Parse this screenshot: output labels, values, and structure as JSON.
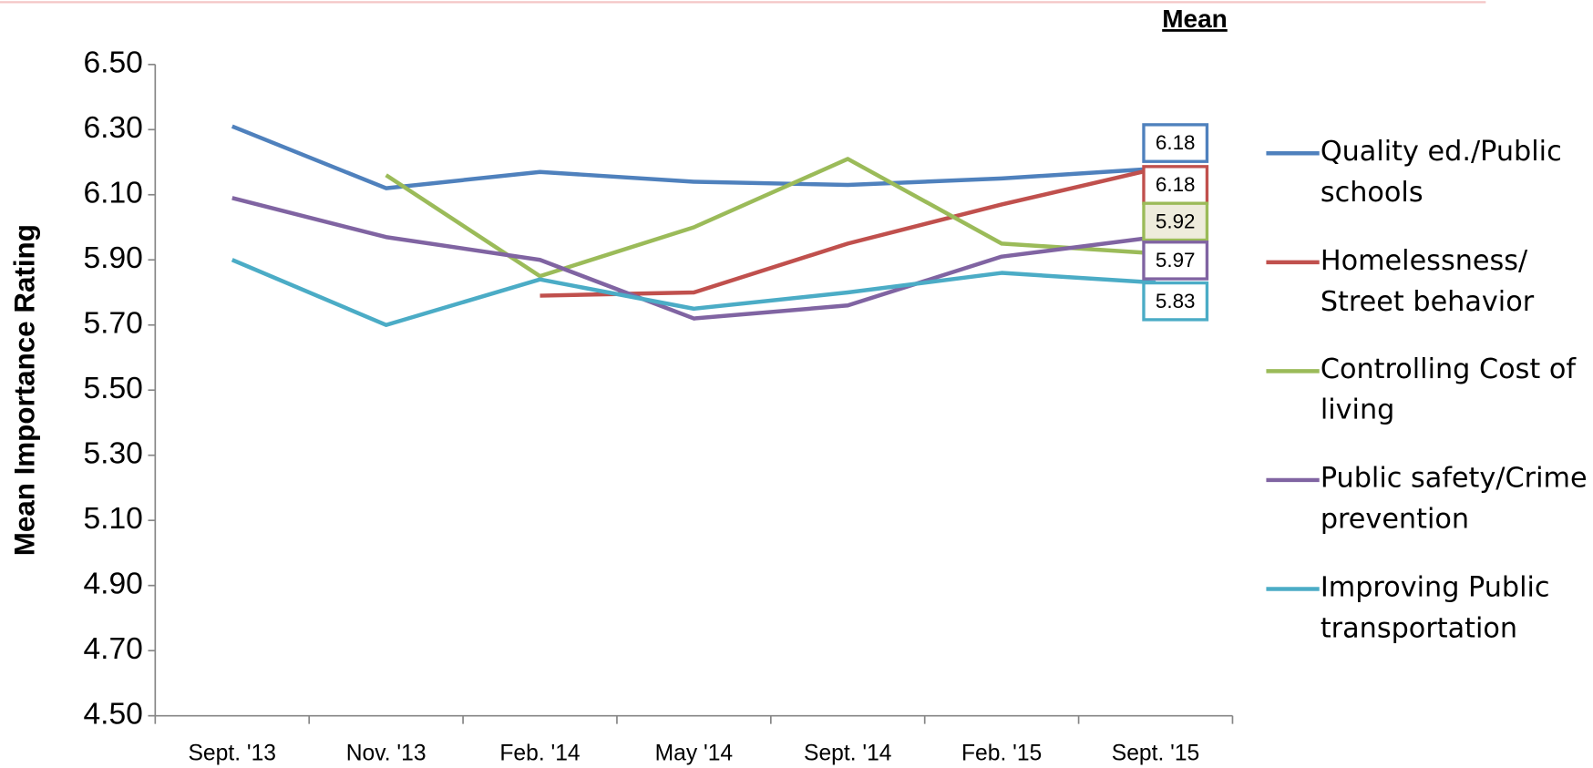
{
  "chart_data": {
    "type": "line",
    "y_label": "Mean Importance  Rating",
    "label_header": "Mean",
    "categories": [
      "Sept. '13",
      "Nov. '13",
      "Feb. '14",
      "May '14",
      "Sept. '14",
      "Feb. '15",
      "Sept. '15"
    ],
    "series": [
      {
        "name": "Quality ed./Public schools",
        "color": "#4f81bd",
        "values": [
          6.31,
          6.12,
          6.17,
          6.14,
          6.13,
          6.15,
          6.18
        ]
      },
      {
        "name": "Homelessness/ Street behavior",
        "color": "#c0504d",
        "values": [
          null,
          null,
          5.79,
          5.8,
          5.95,
          6.07,
          6.18
        ]
      },
      {
        "name": "Controlling Cost of living",
        "color": "#9bbb59",
        "values": [
          null,
          6.16,
          5.85,
          6.0,
          6.21,
          5.95,
          5.92
        ]
      },
      {
        "name": "Public safety/Crime prevention",
        "color": "#8064a2",
        "values": [
          6.09,
          5.97,
          5.9,
          5.72,
          5.76,
          5.91,
          5.97
        ]
      },
      {
        "name": "Improving Public transportation",
        "color": "#4bacc6",
        "values": [
          5.9,
          5.7,
          5.84,
          5.75,
          5.8,
          5.86,
          5.83
        ]
      }
    ],
    "ylim": [
      4.5,
      6.5
    ],
    "yticks": [
      {
        "value": 4.5,
        "label": "4.50"
      },
      {
        "value": 4.7,
        "label": "4.70"
      },
      {
        "value": 4.9,
        "label": "4.90"
      },
      {
        "value": 5.1,
        "label": "5.10"
      },
      {
        "value": 5.3,
        "label": "5.30"
      },
      {
        "value": 5.5,
        "label": "5.50"
      },
      {
        "value": 5.7,
        "label": "5.70"
      },
      {
        "value": 5.9,
        "label": "5.90"
      },
      {
        "value": 6.1,
        "label": "6.10"
      },
      {
        "value": 6.3,
        "label": "6.30"
      },
      {
        "value": 6.5,
        "label": "6.50"
      }
    ],
    "grid": false,
    "legend": "right"
  }
}
